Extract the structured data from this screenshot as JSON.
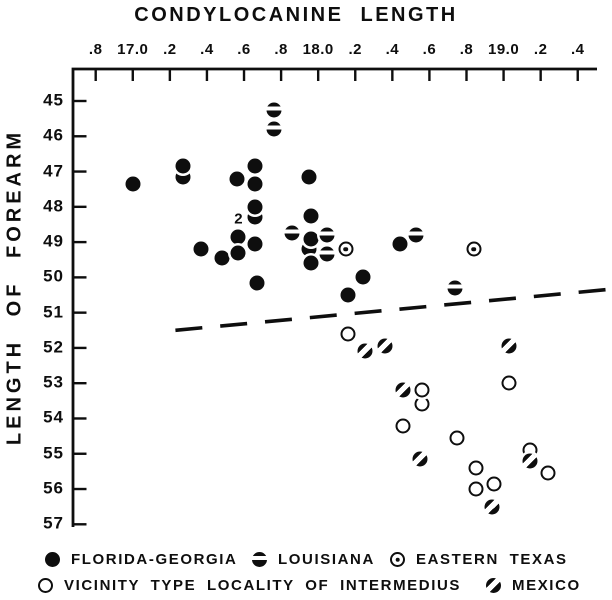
{
  "chart_data": {
    "type": "scatter",
    "title": "CONDYLOCANINE LENGTH",
    "xlabel": "CONDYLOCANINE LENGTH",
    "ylabel": "LENGTH OF FOREARM",
    "x_axis": {
      "position": "top",
      "range": [
        16.67,
        19.5
      ],
      "ticks": [
        16.8,
        17.0,
        17.2,
        17.4,
        17.6,
        17.8,
        18.0,
        18.2,
        18.4,
        18.6,
        18.8,
        19.0,
        19.2,
        19.4
      ],
      "tick_labels": [
        ".8",
        "17.0",
        ".2",
        ".4",
        ".6",
        ".8",
        "18.0",
        ".2",
        ".4",
        ".6",
        ".8",
        "19.0",
        ".2",
        ".4"
      ]
    },
    "y_axis": {
      "position": "left",
      "inverted": true,
      "range": [
        44.1,
        57.1
      ],
      "ticks": [
        45,
        46,
        47,
        48,
        49,
        50,
        51,
        52,
        53,
        54,
        55,
        56,
        57
      ],
      "tick_labels": [
        "45",
        "46",
        "47",
        "48",
        "49",
        "50",
        "51",
        "52",
        "53",
        "54",
        "55",
        "56",
        "57"
      ]
    },
    "grid": false,
    "legend_position": "bottom",
    "series": [
      {
        "name": "FLORIDA-GEORGIA",
        "symbol": "filled-circle",
        "points": [
          [
            17.0,
            47.35
          ],
          [
            17.27,
            47.15
          ],
          [
            17.27,
            46.85
          ],
          [
            17.56,
            47.2
          ],
          [
            17.66,
            46.85
          ],
          [
            17.66,
            47.35
          ],
          [
            17.66,
            48.3
          ],
          [
            17.66,
            48.0
          ],
          [
            17.37,
            49.2
          ],
          [
            17.48,
            49.45
          ],
          [
            17.57,
            48.85
          ],
          [
            17.57,
            49.3
          ],
          [
            17.66,
            49.05
          ],
          [
            17.67,
            50.15
          ],
          [
            17.95,
            47.15
          ],
          [
            17.96,
            48.25
          ],
          [
            17.95,
            49.2
          ],
          [
            17.96,
            48.9
          ],
          [
            17.96,
            49.6
          ],
          [
            18.16,
            50.5
          ],
          [
            18.24,
            50.0
          ],
          [
            18.44,
            49.05
          ]
        ]
      },
      {
        "name": "LOUISIANA",
        "symbol": "circle-white-band",
        "points": [
          [
            17.76,
            45.25
          ],
          [
            17.76,
            45.8
          ],
          [
            17.86,
            48.75
          ],
          [
            18.05,
            48.8
          ],
          [
            18.05,
            49.35
          ],
          [
            18.53,
            48.8
          ],
          [
            18.74,
            50.3
          ]
        ]
      },
      {
        "name": "EASTERN TEXAS",
        "symbol": "circle-center-dot",
        "points": [
          [
            18.15,
            49.2
          ],
          [
            18.84,
            49.2
          ]
        ]
      },
      {
        "name": "VICINITY TYPE LOCALITY OF INTERMEDIUS",
        "symbol": "open-circle",
        "points": [
          [
            18.16,
            51.6
          ],
          [
            18.56,
            53.6
          ],
          [
            18.56,
            53.2
          ],
          [
            18.46,
            54.2
          ],
          [
            18.75,
            54.55
          ],
          [
            19.03,
            53.0
          ],
          [
            18.85,
            55.4
          ],
          [
            18.85,
            56.0
          ],
          [
            18.95,
            55.85
          ],
          [
            19.14,
            54.9
          ],
          [
            19.24,
            55.55
          ]
        ]
      },
      {
        "name": "MEXICO",
        "symbol": "circle-diagonal-band",
        "points": [
          [
            18.25,
            52.1
          ],
          [
            18.36,
            51.95
          ],
          [
            19.03,
            51.95
          ],
          [
            18.46,
            53.2
          ],
          [
            18.55,
            55.15
          ],
          [
            19.14,
            55.2
          ],
          [
            18.94,
            56.5
          ]
        ]
      }
    ],
    "separator_line": {
      "style": "dashed",
      "from": [
        17.23,
        51.5
      ],
      "to": [
        19.55,
        50.35
      ]
    },
    "annotations": [
      {
        "text": "2",
        "x": 17.57,
        "y": 48.35
      }
    ]
  },
  "legend": {
    "rows": [
      [
        {
          "symbol": "filled-circle",
          "label": "FLORIDA-GEORGIA"
        },
        {
          "symbol": "circle-white-band",
          "label": "LOUISIANA"
        },
        {
          "symbol": "circle-center-dot",
          "label": "EASTERN TEXAS"
        }
      ],
      [
        {
          "symbol": "open-circle",
          "label": "VICINITY TYPE LOCALITY OF INTERMEDIUS"
        },
        {
          "symbol": "circle-diagonal-band",
          "label": "MEXICO"
        }
      ]
    ]
  },
  "colors": {
    "ink": "#0e0e0e",
    "paper": "#ffffff"
  }
}
